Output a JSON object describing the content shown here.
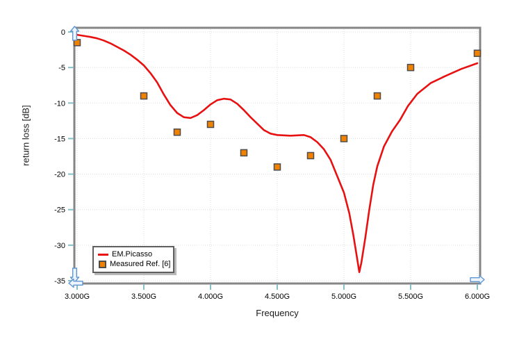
{
  "chart_data": {
    "type": "line",
    "title": "",
    "xlabel": "Frequency",
    "ylabel": "return loss [dB]",
    "xlim": [
      3.0,
      6.0
    ],
    "ylim": [
      -35,
      0
    ],
    "x_ticks": [
      "3.000G",
      "3.500G",
      "4.000G",
      "4.500G",
      "5.000G",
      "5.500G",
      "6.000G"
    ],
    "x_tick_values": [
      3.0,
      3.5,
      4.0,
      4.5,
      5.0,
      5.5,
      6.0
    ],
    "y_ticks": [
      "0",
      "-5",
      "-10",
      "-15",
      "-20",
      "-25",
      "-30",
      "-35"
    ],
    "y_tick_values": [
      0,
      -5,
      -10,
      -15,
      -20,
      -25,
      -30,
      -35
    ],
    "grid": "dotted",
    "legend_position": "bottom-left",
    "series": [
      {
        "name": "EM.Picasso",
        "type": "line",
        "color": "#e81010",
        "points": [
          [
            3.0,
            -0.4
          ],
          [
            3.05,
            -0.55
          ],
          [
            3.1,
            -0.7
          ],
          [
            3.15,
            -0.9
          ],
          [
            3.2,
            -1.2
          ],
          [
            3.25,
            -1.6
          ],
          [
            3.3,
            -2.1
          ],
          [
            3.35,
            -2.6
          ],
          [
            3.4,
            -3.2
          ],
          [
            3.45,
            -3.9
          ],
          [
            3.5,
            -4.7
          ],
          [
            3.55,
            -5.8
          ],
          [
            3.6,
            -7.1
          ],
          [
            3.65,
            -8.8
          ],
          [
            3.7,
            -10.3
          ],
          [
            3.75,
            -11.4
          ],
          [
            3.8,
            -12.0
          ],
          [
            3.85,
            -12.1
          ],
          [
            3.9,
            -11.7
          ],
          [
            3.95,
            -11.0
          ],
          [
            4.0,
            -10.2
          ],
          [
            4.05,
            -9.6
          ],
          [
            4.1,
            -9.4
          ],
          [
            4.15,
            -9.5
          ],
          [
            4.2,
            -10.1
          ],
          [
            4.25,
            -11.0
          ],
          [
            4.3,
            -12.0
          ],
          [
            4.35,
            -12.9
          ],
          [
            4.4,
            -13.8
          ],
          [
            4.45,
            -14.3
          ],
          [
            4.5,
            -14.5
          ],
          [
            4.6,
            -14.6
          ],
          [
            4.7,
            -14.5
          ],
          [
            4.75,
            -14.8
          ],
          [
            4.8,
            -15.5
          ],
          [
            4.85,
            -16.5
          ],
          [
            4.9,
            -18.0
          ],
          [
            4.95,
            -20.3
          ],
          [
            5.0,
            -22.6
          ],
          [
            5.04,
            -25.5
          ],
          [
            5.07,
            -28.5
          ],
          [
            5.1,
            -32.0
          ],
          [
            5.115,
            -33.8
          ],
          [
            5.13,
            -32.5
          ],
          [
            5.16,
            -29.0
          ],
          [
            5.19,
            -25.0
          ],
          [
            5.22,
            -21.5
          ],
          [
            5.25,
            -18.9
          ],
          [
            5.3,
            -16.1
          ],
          [
            5.36,
            -14.0
          ],
          [
            5.42,
            -12.4
          ],
          [
            5.48,
            -10.4
          ],
          [
            5.55,
            -8.7
          ],
          [
            5.65,
            -7.2
          ],
          [
            5.76,
            -6.2
          ],
          [
            5.88,
            -5.2
          ],
          [
            6.0,
            -4.4
          ]
        ]
      },
      {
        "name": "Measured Ref. [6]",
        "type": "scatter",
        "marker": "square",
        "color": "#f08200",
        "border_color": "#4d4d4d",
        "points": [
          [
            3.0,
            -1.5
          ],
          [
            3.5,
            -9.0
          ],
          [
            3.75,
            -14.1
          ],
          [
            4.0,
            -13.0
          ],
          [
            4.25,
            -17.0
          ],
          [
            4.5,
            -19.0
          ],
          [
            4.75,
            -17.4
          ],
          [
            5.0,
            -15.0
          ],
          [
            5.25,
            -9.0
          ],
          [
            5.5,
            -5.0
          ],
          [
            6.0,
            -3.0
          ]
        ]
      }
    ],
    "colors": {
      "background": "#ffffff",
      "axis_frame": "#858585",
      "tick": "#85bfc7",
      "grid": "#dcdcdc",
      "arrow_stroke": "#5f96d2",
      "arrow_fill": "#eef5fd",
      "text": "#000000"
    }
  },
  "legend": {
    "item1": "EM.Picasso",
    "item2": "Measured Ref. [6]"
  }
}
